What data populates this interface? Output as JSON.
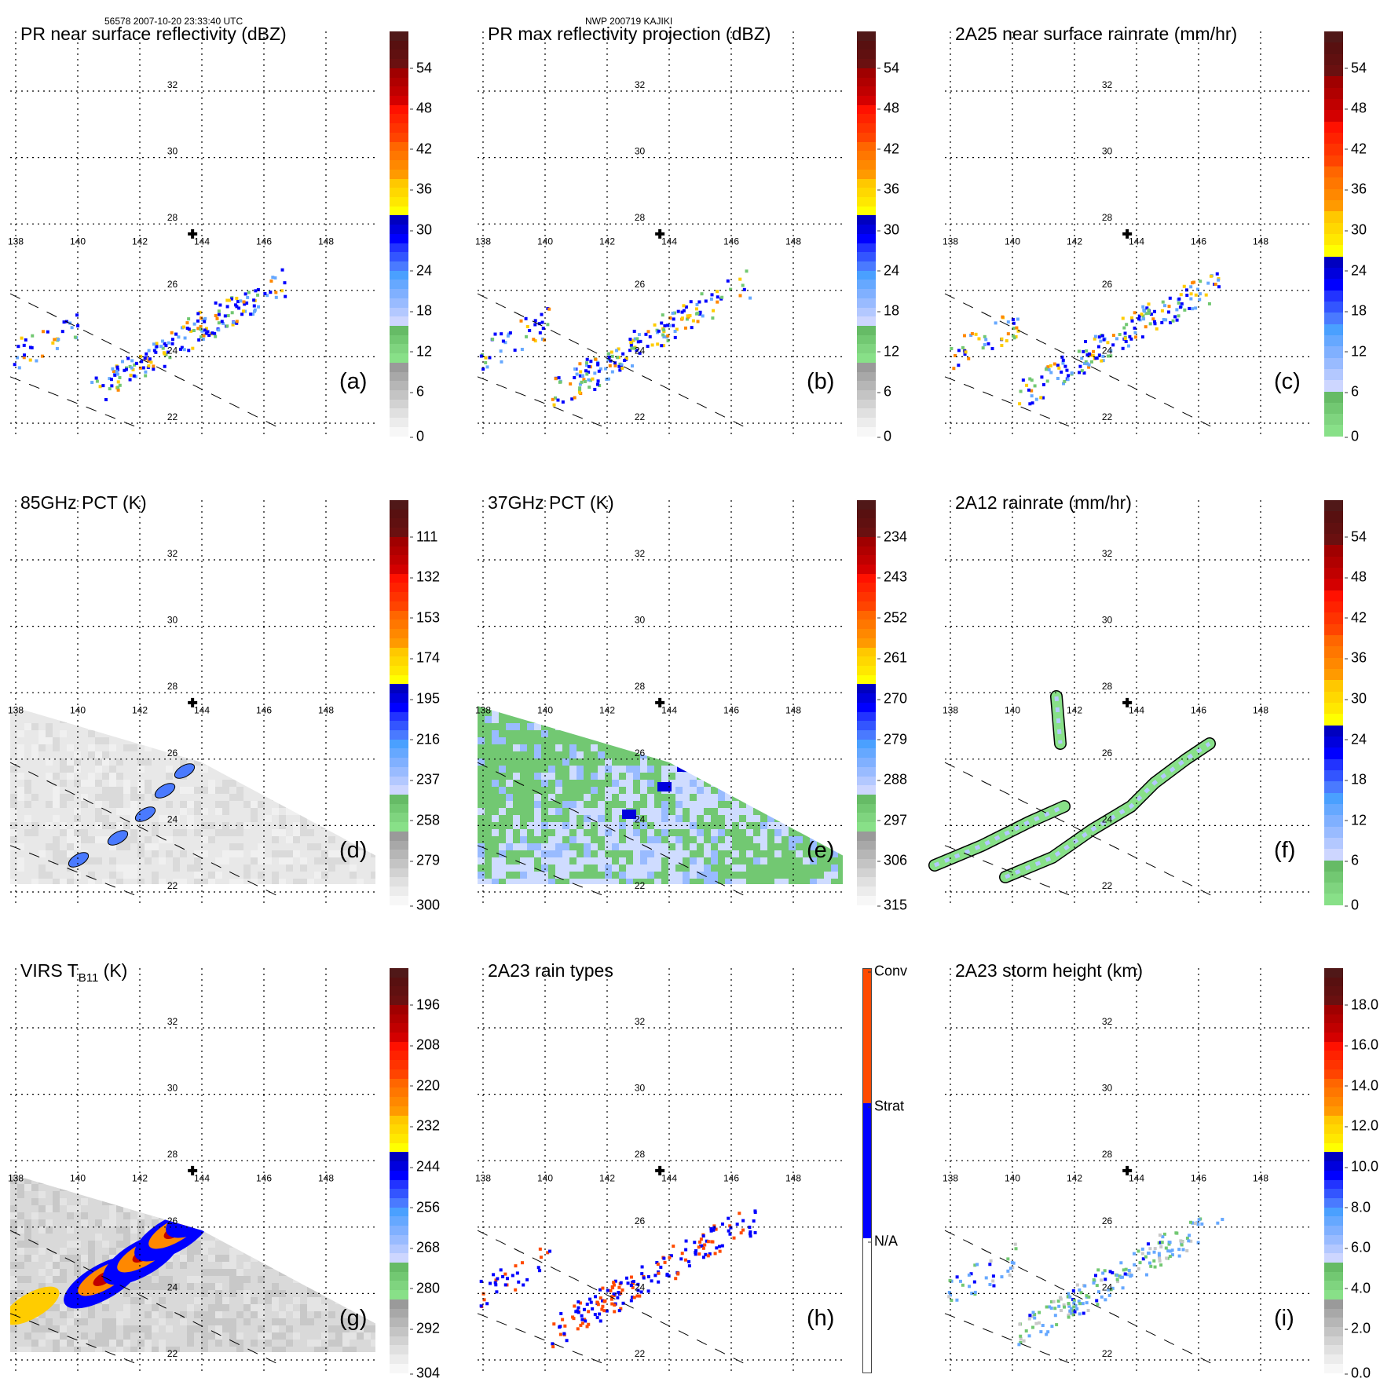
{
  "header": {
    "orbit_time": "56578 2007-10-20 23:33:40 UTC",
    "storm_id": "NWP 200719 KAJIKI"
  },
  "colors": {
    "conv": "#ff4a00",
    "strat": "#0000ff",
    "na": "#ffffff",
    "swath_edge": "#000000",
    "storm_center": "#000000"
  },
  "chart_data": [
    {
      "id": "a",
      "type": "heatmap",
      "panel_label": "(a)",
      "title": "PR near surface reflectivity (dBZ)",
      "colorbar": {
        "ticks": [
          "54",
          "48",
          "42",
          "36",
          "30",
          "24",
          "18",
          "12",
          "6",
          "0"
        ],
        "range": [
          0,
          60
        ],
        "style": "gradient"
      },
      "field": "radar",
      "lon_ticks": [
        "138",
        "140",
        "142",
        "144",
        "146",
        "148"
      ],
      "lat_ticks": [
        "32",
        "30",
        "28",
        "26",
        "24",
        "22"
      ],
      "storm_center": {
        "lon": 143.7,
        "lat": 27.7
      }
    },
    {
      "id": "b",
      "type": "heatmap",
      "panel_label": "(b)",
      "title": "PR max reflectivity projection (dBZ)",
      "colorbar": {
        "ticks": [
          "54",
          "48",
          "42",
          "36",
          "30",
          "24",
          "18",
          "12",
          "6",
          "0"
        ],
        "range": [
          0,
          60
        ],
        "style": "gradient"
      },
      "field": "radar",
      "lon_ticks": [
        "138",
        "140",
        "142",
        "144",
        "146",
        "148"
      ],
      "lat_ticks": [
        "32",
        "30",
        "28",
        "26",
        "24",
        "22"
      ],
      "storm_center": {
        "lon": 143.7,
        "lat": 27.7
      }
    },
    {
      "id": "c",
      "type": "heatmap",
      "panel_label": "(c)",
      "title": "2A25 near surface rainrate (mm/hr)",
      "colorbar": {
        "ticks": [
          "54",
          "48",
          "42",
          "36",
          "30",
          "24",
          "18",
          "12",
          "6",
          "0"
        ],
        "range": [
          0,
          60
        ],
        "style": "rain"
      },
      "field": "radar",
      "lon_ticks": [
        "138",
        "140",
        "142",
        "144",
        "146",
        "148"
      ],
      "lat_ticks": [
        "32",
        "30",
        "28",
        "26",
        "24",
        "22"
      ],
      "storm_center": {
        "lon": 143.7,
        "lat": 27.7
      }
    },
    {
      "id": "d",
      "type": "heatmap",
      "panel_label": "(d)",
      "title": "85GHz PCT (K)",
      "colorbar": {
        "ticks": [
          "111",
          "132",
          "153",
          "174",
          "195",
          "216",
          "237",
          "258",
          "279",
          "300"
        ],
        "range": [
          300,
          90
        ],
        "style": "gradient"
      },
      "field": "tmi85",
      "lon_ticks": [
        "138",
        "140",
        "142",
        "144",
        "146",
        "148"
      ],
      "lat_ticks": [
        "32",
        "30",
        "28",
        "26",
        "24",
        "22"
      ],
      "storm_center": {
        "lon": 143.7,
        "lat": 27.7
      }
    },
    {
      "id": "e",
      "type": "heatmap",
      "panel_label": "(e)",
      "title": "37GHz PCT (K)",
      "colorbar": {
        "ticks": [
          "234",
          "243",
          "252",
          "261",
          "270",
          "279",
          "288",
          "297",
          "306",
          "315"
        ],
        "range": [
          315,
          225
        ],
        "style": "gradient"
      },
      "field": "tmi37",
      "lon_ticks": [
        "138",
        "140",
        "142",
        "144",
        "146",
        "148"
      ],
      "lat_ticks": [
        "32",
        "30",
        "28",
        "26",
        "24",
        "22"
      ],
      "storm_center": {
        "lon": 143.7,
        "lat": 27.7
      }
    },
    {
      "id": "f",
      "type": "heatmap",
      "panel_label": "(f)",
      "title": "2A12 rainrate (mm/hr)",
      "colorbar": {
        "ticks": [
          "54",
          "48",
          "42",
          "36",
          "30",
          "24",
          "18",
          "12",
          "6",
          "0"
        ],
        "range": [
          0,
          60
        ],
        "style": "rain"
      },
      "field": "tmirain",
      "lon_ticks": [
        "138",
        "140",
        "142",
        "144",
        "146",
        "148"
      ],
      "lat_ticks": [
        "32",
        "30",
        "28",
        "26",
        "24",
        "22"
      ],
      "storm_center": {
        "lon": 143.7,
        "lat": 27.7
      }
    },
    {
      "id": "g",
      "type": "heatmap",
      "panel_label": "(g)",
      "title_main": "VIRS T",
      "title_sub": "B11",
      "title_unit": " (K)",
      "colorbar": {
        "ticks": [
          "196",
          "208",
          "220",
          "232",
          "244",
          "256",
          "268",
          "280",
          "292",
          "304"
        ],
        "range": [
          304,
          184
        ],
        "style": "gradient"
      },
      "field": "virs",
      "lon_ticks": [
        "138",
        "140",
        "142",
        "144",
        "146",
        "148"
      ],
      "lat_ticks": [
        "32",
        "30",
        "28",
        "26",
        "24",
        "22"
      ],
      "storm_center": {
        "lon": 143.7,
        "lat": 27.7
      }
    },
    {
      "id": "h",
      "type": "heatmap",
      "panel_label": "(h)",
      "title": "2A23 rain types",
      "colorbar": {
        "ticks": [
          "Conv",
          "Strat",
          "N/A"
        ],
        "categories": [
          "N/A",
          "Strat",
          "Conv"
        ],
        "style": "categorical"
      },
      "field": "raintype",
      "lon_ticks": [
        "138",
        "140",
        "142",
        "144",
        "146",
        "148"
      ],
      "lat_ticks": [
        "32",
        "30",
        "28",
        "26",
        "24",
        "22"
      ],
      "storm_center": {
        "lon": 143.7,
        "lat": 27.7
      }
    },
    {
      "id": "i",
      "type": "heatmap",
      "panel_label": "(i)",
      "title": "2A23 storm height (km)",
      "colorbar": {
        "ticks": [
          "18.0",
          "16.0",
          "14.0",
          "12.0",
          "10.0",
          "8.0",
          "6.0",
          "4.0",
          "2.0",
          "0.0"
        ],
        "range": [
          0,
          20
        ],
        "style": "gradient"
      },
      "field": "radar_height",
      "lon_ticks": [
        "138",
        "140",
        "142",
        "144",
        "146",
        "148"
      ],
      "lat_ticks": [
        "32",
        "30",
        "28",
        "26",
        "24",
        "22"
      ],
      "storm_center": {
        "lon": 143.7,
        "lat": 27.7
      }
    }
  ]
}
